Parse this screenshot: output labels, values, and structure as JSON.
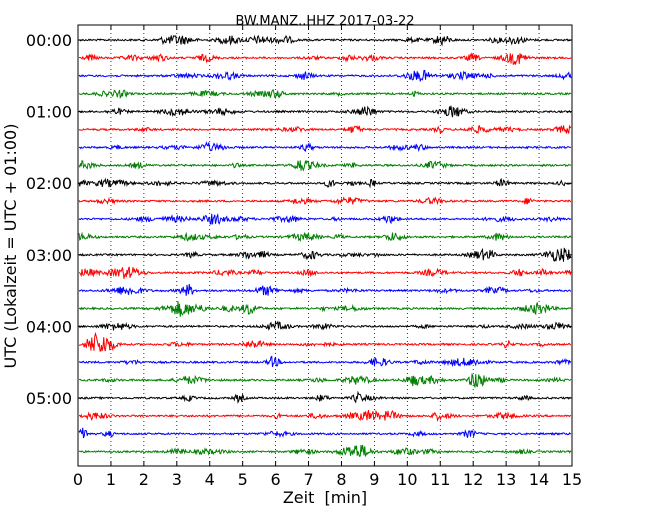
{
  "chart_data": {
    "type": "line",
    "title": "BW.MANZ..HHZ 2017-03-22",
    "xlabel": "Zeit  [min]",
    "ylabel": "UTC (Lokalzeit = UTC + 01:00)",
    "xlim": [
      0,
      15
    ],
    "x_ticks": [
      "0",
      "1",
      "2",
      "3",
      "4",
      "5",
      "6",
      "7",
      "8",
      "9",
      "10",
      "11",
      "12",
      "13",
      "14",
      "15"
    ],
    "y_tick_labels": [
      "00:00",
      "01:00",
      "02:00",
      "03:00",
      "04:00",
      "05:00"
    ],
    "rows_per_hour": 4,
    "row_minutes": 15,
    "trace_colors": [
      "#000000",
      "#ff0000",
      "#0000ff",
      "#007f00"
    ],
    "rows": [
      {
        "start": "00:00"
      },
      {
        "start": "00:15"
      },
      {
        "start": "00:30"
      },
      {
        "start": "00:45"
      },
      {
        "start": "01:00"
      },
      {
        "start": "01:15"
      },
      {
        "start": "01:30"
      },
      {
        "start": "01:45"
      },
      {
        "start": "02:00"
      },
      {
        "start": "02:15"
      },
      {
        "start": "02:30"
      },
      {
        "start": "02:45"
      },
      {
        "start": "03:00"
      },
      {
        "start": "03:15"
      },
      {
        "start": "03:30"
      },
      {
        "start": "03:45"
      },
      {
        "start": "04:00"
      },
      {
        "start": "04:15"
      },
      {
        "start": "04:30"
      },
      {
        "start": "04:45"
      },
      {
        "start": "05:00"
      },
      {
        "start": "05:15"
      },
      {
        "start": "05:30"
      },
      {
        "start": "05:45"
      }
    ],
    "grid": "vertical-dotted",
    "legend": "none"
  }
}
